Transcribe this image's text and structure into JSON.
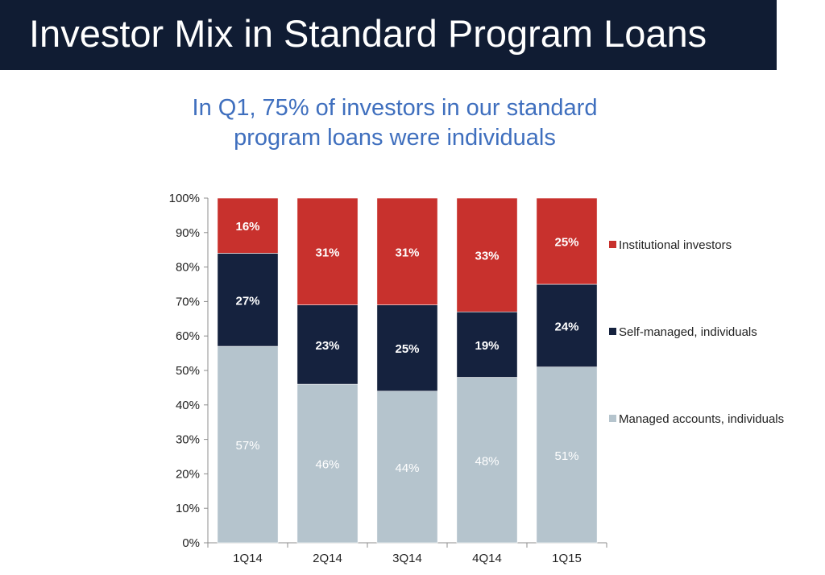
{
  "header": {
    "title": "Investor Mix in Standard Program Loans",
    "subtitle": "In Q1, 75% of investors in our standard program loans were individuals"
  },
  "colors": {
    "title_bar": "#101c33",
    "subtitle": "#3f6fbe",
    "institutional": "#c8312d",
    "self_managed": "#15223e",
    "managed": "#b5c4cd"
  },
  "chart_data": {
    "type": "bar",
    "stacked": true,
    "categories": [
      "1Q14",
      "2Q14",
      "3Q14",
      "4Q14",
      "1Q15"
    ],
    "series": [
      {
        "name": "Managed accounts, individuals",
        "values": [
          57,
          46,
          44,
          48,
          51
        ],
        "labels": [
          "57%",
          "46%",
          "44%",
          "48%",
          "51%"
        ],
        "color": "#b5c4cd"
      },
      {
        "name": "Self-managed, individuals",
        "values": [
          27,
          23,
          25,
          19,
          24
        ],
        "labels": [
          "27%",
          "23%",
          "25%",
          "19%",
          "24%"
        ],
        "color": "#15223e"
      },
      {
        "name": "Institutional investors",
        "values": [
          16,
          31,
          31,
          33,
          25
        ],
        "labels": [
          "16%",
          "31%",
          "31%",
          "33%",
          "25%"
        ],
        "color": "#c8312d"
      }
    ],
    "ylim": [
      0,
      100
    ],
    "yticks": [
      "0%",
      "10%",
      "20%",
      "30%",
      "40%",
      "50%",
      "60%",
      "70%",
      "80%",
      "90%",
      "100%"
    ],
    "legend_position": "right",
    "grid": false
  }
}
